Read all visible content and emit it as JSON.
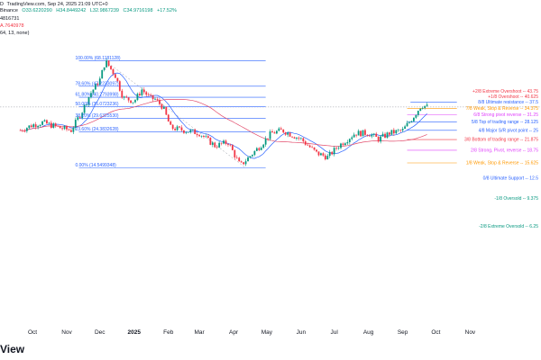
{
  "header": {
    "line1": "D",
    "publisher": "TradingView.com, Sep 24, 2025 21:09 UTC+0",
    "exchange": "Binance",
    "open": "O33.6220290",
    "high": "H34.8449242",
    "low": "L32.9867239",
    "close": "C34.9716198",
    "change_pct": "+17.52%",
    "ma_blue": "4816731",
    "ma_red": "A.7640978",
    "indicator_params": "64, 13, none)"
  },
  "x_axis": {
    "labels": [
      "Oct",
      "Nov",
      "Dec",
      "2025",
      "Feb",
      "Mar",
      "Apr",
      "May",
      "Jun",
      "Jul",
      "Aug",
      "Sep",
      "Oct",
      "Nov"
    ]
  },
  "fib_levels": [
    {
      "label": "100.00% (68.1181128)"
    },
    {
      "label": "78.60% (47.2233097)"
    },
    {
      "label": "61.80% (40.2793998)"
    },
    {
      "label": "50.00% (35.0723236)"
    },
    {
      "label": "38.20% (29.6325530)"
    },
    {
      "label": "23.60% (24.3832628)"
    },
    {
      "label": "0.00% (14.5499348)"
    }
  ],
  "murrey_levels": [
    {
      "label": "+2/8 Extreme Overshoot -- 43.75",
      "color": "#f23645"
    },
    {
      "label": "+1/8 Overshoot -- 40.625",
      "color": "#f23645"
    },
    {
      "label": "8/8 Ultimate resistance -- 37.5",
      "color": "#2962ff"
    },
    {
      "label": "7/8 Weak, Stop & Reverse -- 34.375",
      "color": "#ff9800"
    },
    {
      "label": "6/8 Strong pivot reverse -- 31.25",
      "color": "#e040fb"
    },
    {
      "label": "5/8 Top of trading range -- 28.125",
      "color": "#2962ff"
    },
    {
      "label": "4/8 Major S/R pivot point -- 25",
      "color": "#2962ff"
    },
    {
      "label": "3/8 Bottom of trading range -- 21.875",
      "color": "#f23645"
    },
    {
      "label": "2/8 Strong, Pivot, reverse -- 18.75",
      "color": "#e040fb"
    },
    {
      "label": "1/8 Weak, Stop & Reverse -- 15.625",
      "color": "#ff9800"
    },
    {
      "label": "0/8 Ultimate Support -- 12.5",
      "color": "#2962ff"
    },
    {
      "label": "-1/8 Oversold -- 9.375",
      "color": "#089981"
    },
    {
      "label": "-2/8 Extreme Oversold -- 6.25",
      "color": "#089981"
    }
  ],
  "footer": {
    "logo": "View"
  },
  "colors": {
    "up": "#089981",
    "down": "#f23645",
    "ma_blue": "#2962ff",
    "ma_red": "#e24b6b",
    "fib_line": "#2962ff",
    "fib_text": "#2962ff",
    "crosshair": "#9598a1"
  },
  "chart_data": {
    "type": "candlestick",
    "time_axis": [
      "Oct",
      "Nov",
      "Dec",
      "2025",
      "Feb",
      "Mar",
      "Apr",
      "May",
      "Jun",
      "Jul",
      "Aug",
      "Sep",
      "Oct",
      "Nov"
    ],
    "close_path": [
      {
        "date": "2024-09-20",
        "price": 25
      },
      {
        "date": "2024-10-01",
        "price": 27
      },
      {
        "date": "2024-10-10",
        "price": 28
      },
      {
        "date": "2024-10-25",
        "price": 26
      },
      {
        "date": "2024-11-05",
        "price": 25
      },
      {
        "date": "2024-11-15",
        "price": 33
      },
      {
        "date": "2024-11-22",
        "price": 42
      },
      {
        "date": "2024-12-01",
        "price": 52
      },
      {
        "date": "2024-12-06",
        "price": 68
      },
      {
        "date": "2024-12-15",
        "price": 55
      },
      {
        "date": "2024-12-22",
        "price": 40
      },
      {
        "date": "2025-01-01",
        "price": 38
      },
      {
        "date": "2025-01-08",
        "price": 45
      },
      {
        "date": "2025-01-15",
        "price": 40
      },
      {
        "date": "2025-01-20",
        "price": 39
      },
      {
        "date": "2025-01-27",
        "price": 35
      },
      {
        "date": "2025-02-03",
        "price": 26
      },
      {
        "date": "2025-02-15",
        "price": 25
      },
      {
        "date": "2025-03-01",
        "price": 24
      },
      {
        "date": "2025-03-15",
        "price": 20
      },
      {
        "date": "2025-03-27",
        "price": 21
      },
      {
        "date": "2025-04-07",
        "price": 15
      },
      {
        "date": "2025-04-15",
        "price": 17
      },
      {
        "date": "2025-04-25",
        "price": 20
      },
      {
        "date": "2025-05-05",
        "price": 24
      },
      {
        "date": "2025-05-15",
        "price": 25
      },
      {
        "date": "2025-06-01",
        "price": 22
      },
      {
        "date": "2025-06-15",
        "price": 18
      },
      {
        "date": "2025-06-25",
        "price": 17
      },
      {
        "date": "2025-07-05",
        "price": 20
      },
      {
        "date": "2025-07-20",
        "price": 24
      },
      {
        "date": "2025-08-01",
        "price": 24
      },
      {
        "date": "2025-08-10",
        "price": 22
      },
      {
        "date": "2025-08-20",
        "price": 24
      },
      {
        "date": "2025-09-01",
        "price": 25
      },
      {
        "date": "2025-09-10",
        "price": 30
      },
      {
        "date": "2025-09-18",
        "price": 36
      },
      {
        "date": "2025-09-24",
        "price": 35
      }
    ],
    "fibonacci_retracement": [
      {
        "pct": 100.0,
        "value": 68.1181128
      },
      {
        "pct": 78.6,
        "value": 47.2233097
      },
      {
        "pct": 61.8,
        "value": 40.2793998
      },
      {
        "pct": 50.0,
        "value": 35.0723236
      },
      {
        "pct": 38.2,
        "value": 29.632553
      },
      {
        "pct": 23.6,
        "value": 24.3832628
      },
      {
        "pct": 0.0,
        "value": 14.5499348
      }
    ],
    "murrey_math": [
      43.75,
      40.625,
      37.5,
      34.375,
      31.25,
      28.125,
      25,
      21.875,
      18.75,
      15.625,
      12.5,
      9.375,
      6.25
    ]
  }
}
